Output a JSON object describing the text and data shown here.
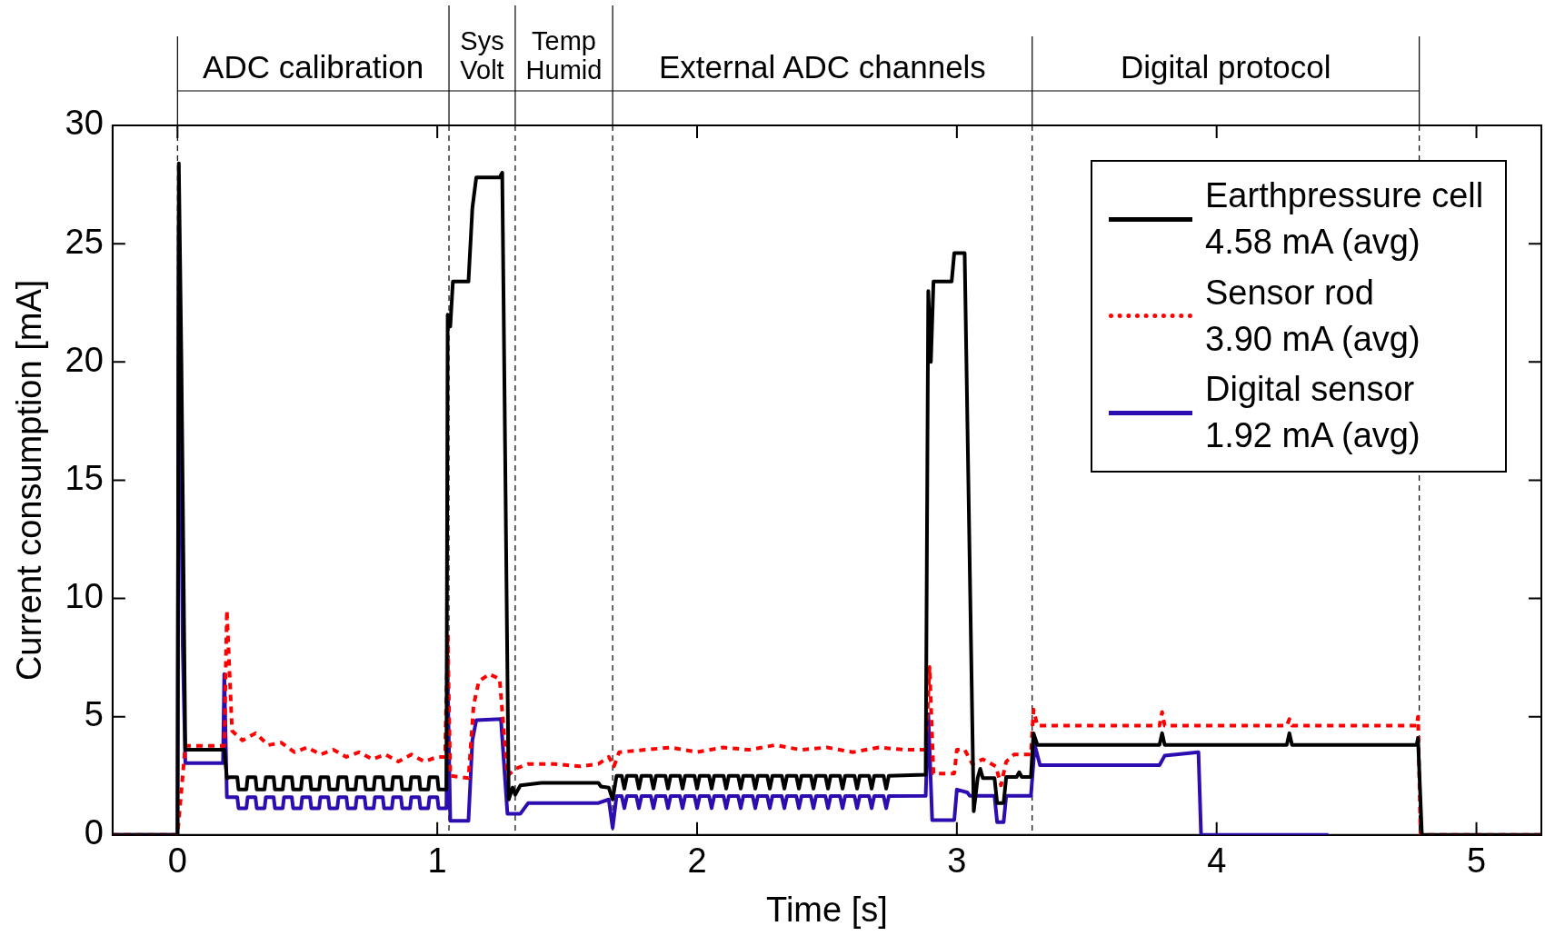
{
  "chart_data": {
    "type": "line",
    "xlabel": "Time [s]",
    "ylabel": "Current consumption [mA]",
    "xlim": [
      -0.25,
      5.25
    ],
    "xticks": [
      0,
      1,
      2,
      3,
      4,
      5
    ],
    "ylim": [
      0,
      30
    ],
    "yticks": [
      0,
      5,
      10,
      15,
      20,
      25,
      30
    ],
    "grid": false,
    "legend": "top right",
    "marker": "none",
    "ref_lines": [
      {
        "axis": "x",
        "value": 0,
        "line_style": "dashed",
        "color": "#000000"
      },
      {
        "axis": "x",
        "value": 1.045,
        "line_style": "dashed",
        "color": "#000000"
      },
      {
        "axis": "x",
        "value": 1.3,
        "line_style": "dashed",
        "color": "#000000"
      },
      {
        "axis": "x",
        "value": 1.675,
        "line_style": "dashed",
        "color": "#000000"
      },
      {
        "axis": "x",
        "value": 3.29,
        "line_style": "dashed",
        "color": "#000000"
      },
      {
        "axis": "x",
        "value": 4.78,
        "line_style": "dashed",
        "color": "#000000"
      }
    ],
    "annotations": [
      "ADC calibration",
      "Sys\nVolt",
      "Temp\nHumid",
      "External ADC channels",
      "Digital protocol"
    ],
    "series": [
      {
        "name": "Earthpressure cell\n4.58 mA (avg)",
        "color": "#000000",
        "line_style": "solid",
        "x": [
          -0.25,
          0,
          0.005,
          0.015,
          0.03,
          0.18,
          0.19,
          0.2,
          0.23,
          0.235,
          0.265,
          0.27,
          0.3,
          0.305,
          0.335,
          0.34,
          0.37,
          0.375,
          0.405,
          0.41,
          0.44,
          0.445,
          0.475,
          0.48,
          0.51,
          0.515,
          0.545,
          0.55,
          0.58,
          0.585,
          0.615,
          0.62,
          0.65,
          0.655,
          0.685,
          0.69,
          0.72,
          0.725,
          0.755,
          0.76,
          0.79,
          0.795,
          0.825,
          0.83,
          0.86,
          0.865,
          0.895,
          0.9,
          0.93,
          0.935,
          0.965,
          0.97,
          1.0,
          1.005,
          1.035,
          1.04,
          1.05,
          1.06,
          1.12,
          1.135,
          1.15,
          1.24,
          1.25,
          1.275,
          1.29,
          1.3,
          1.32,
          1.4,
          1.62,
          1.63,
          1.66,
          1.675,
          1.69,
          1.71,
          1.72,
          1.73,
          1.766,
          1.776,
          1.786,
          1.822,
          1.832,
          1.842,
          1.878,
          1.888,
          1.898,
          1.934,
          1.944,
          1.954,
          1.99,
          2.0,
          2.01,
          2.046,
          2.056,
          2.066,
          2.102,
          2.112,
          2.122,
          2.158,
          2.168,
          2.178,
          2.214,
          2.224,
          2.234,
          2.27,
          2.28,
          2.29,
          2.326,
          2.336,
          2.346,
          2.382,
          2.392,
          2.402,
          2.438,
          2.448,
          2.458,
          2.494,
          2.504,
          2.514,
          2.55,
          2.56,
          2.57,
          2.606,
          2.616,
          2.626,
          2.662,
          2.672,
          2.682,
          2.718,
          2.728,
          2.738,
          2.88,
          2.89,
          2.9,
          2.91,
          2.98,
          2.99,
          3.03,
          3.065,
          3.08,
          3.09,
          3.1,
          3.145,
          3.155,
          3.18,
          3.19,
          3.23,
          3.24,
          3.25,
          3.285,
          3.295,
          3.31,
          3.78,
          3.79,
          3.8,
          4.27,
          4.28,
          4.29,
          4.77,
          4.775,
          4.79,
          5.25
        ],
        "values": [
          0,
          0,
          28.4,
          20,
          3.6,
          3.6,
          2.4,
          2.44,
          2.44,
          1.92,
          1.92,
          2.44,
          2.44,
          1.92,
          1.92,
          2.44,
          2.44,
          1.92,
          1.92,
          2.44,
          2.44,
          1.92,
          1.92,
          2.44,
          2.44,
          1.92,
          1.92,
          2.44,
          2.44,
          1.92,
          1.92,
          2.44,
          2.44,
          1.92,
          1.92,
          2.44,
          2.44,
          1.92,
          1.92,
          2.44,
          2.44,
          1.92,
          1.92,
          2.44,
          2.44,
          1.92,
          1.92,
          2.44,
          2.44,
          1.92,
          1.92,
          2.44,
          2.44,
          1.92,
          1.92,
          22,
          21.5,
          23.4,
          23.4,
          26.5,
          27.8,
          27.8,
          28,
          1.5,
          2,
          1.7,
          2.1,
          2.2,
          2.2,
          2.05,
          2,
          1.5,
          2.5,
          2.5,
          1.96,
          2.5,
          2.5,
          1.96,
          2.5,
          2.5,
          1.96,
          2.5,
          2.5,
          1.96,
          2.5,
          2.5,
          1.96,
          2.5,
          2.5,
          1.96,
          2.5,
          2.5,
          1.96,
          2.5,
          2.5,
          1.96,
          2.5,
          2.5,
          1.96,
          2.5,
          2.5,
          1.96,
          2.5,
          2.5,
          1.96,
          2.5,
          2.5,
          1.96,
          2.5,
          2.5,
          1.96,
          2.5,
          2.5,
          1.96,
          2.5,
          2.5,
          1.96,
          2.5,
          2.5,
          1.96,
          2.5,
          2.5,
          1.96,
          2.5,
          2.5,
          1.96,
          2.5,
          2.5,
          1.96,
          2.5,
          2.55,
          23,
          20,
          23.4,
          23.4,
          24.6,
          24.6,
          1,
          2.4,
          2.8,
          2.4,
          2.4,
          1.35,
          1.35,
          2.45,
          2.45,
          2.65,
          2.45,
          2.45,
          4.3,
          3.81,
          3.81,
          4.3,
          3.81,
          3.81,
          4.3,
          3.81,
          3.81,
          4.1,
          0,
          0
        ]
      },
      {
        "name": "Sensor rod\n3.90 mA (avg)",
        "color": "#ff0000",
        "line_style": "dotted",
        "x": [
          -0.25,
          0,
          0.03,
          0.18,
          0.19,
          0.21,
          0.25,
          0.3,
          0.35,
          0.4,
          0.45,
          0.5,
          0.55,
          0.6,
          0.65,
          0.7,
          0.75,
          0.8,
          0.85,
          0.9,
          0.95,
          1.0,
          1.03,
          1.04,
          1.05,
          1.12,
          1.14,
          1.16,
          1.2,
          1.24,
          1.27,
          1.3,
          1.35,
          1.45,
          1.55,
          1.62,
          1.66,
          1.68,
          1.7,
          1.8,
          1.9,
          2.0,
          2.1,
          2.2,
          2.3,
          2.4,
          2.5,
          2.6,
          2.7,
          2.8,
          2.88,
          2.895,
          2.91,
          2.99,
          3.0,
          3.03,
          3.06,
          3.1,
          3.15,
          3.17,
          3.19,
          3.22,
          3.285,
          3.295,
          3.31,
          3.78,
          3.79,
          3.8,
          4.27,
          4.28,
          4.29,
          4.77,
          4.775,
          4.785,
          5.25
        ],
        "values": [
          0,
          0,
          3.77,
          3.77,
          9.5,
          4.4,
          4,
          4.3,
          3.8,
          3.9,
          3.5,
          3.7,
          3.4,
          3.6,
          3.3,
          3.5,
          3.2,
          3.4,
          3.1,
          3.4,
          3.1,
          3.3,
          3.3,
          8.5,
          2.5,
          2.4,
          5.5,
          6.5,
          6.8,
          6.6,
          2.5,
          2.8,
          3,
          3,
          2.9,
          3,
          3.3,
          2.9,
          3.5,
          3.6,
          3.7,
          3.5,
          3.7,
          3.6,
          3.8,
          3.6,
          3.7,
          3.5,
          3.7,
          3.6,
          3.6,
          7.1,
          2.6,
          2.6,
          3.6,
          3.6,
          3,
          3.2,
          2.9,
          2.1,
          3.1,
          3.4,
          3.4,
          5.3,
          4.62,
          4.62,
          5.2,
          4.62,
          4.62,
          4.9,
          4.62,
          4.62,
          5,
          0,
          0
        ]
      },
      {
        "name": "Digital sensor\n1.92 mA (avg)",
        "color": "#2d0db0",
        "line_style": "solid",
        "x": [
          -0.25,
          0,
          0.005,
          0.02,
          0.03,
          0.175,
          0.18,
          0.19,
          0.2,
          0.23,
          0.235,
          0.265,
          0.27,
          0.3,
          0.305,
          0.335,
          0.34,
          0.37,
          0.375,
          0.405,
          0.41,
          0.44,
          0.445,
          0.475,
          0.48,
          0.51,
          0.515,
          0.545,
          0.55,
          0.58,
          0.585,
          0.615,
          0.62,
          0.65,
          0.655,
          0.685,
          0.69,
          0.72,
          0.725,
          0.755,
          0.76,
          0.79,
          0.795,
          0.825,
          0.83,
          0.86,
          0.865,
          0.895,
          0.9,
          0.93,
          0.935,
          0.965,
          0.97,
          1.0,
          1.005,
          1.035,
          1.04,
          1.05,
          1.12,
          1.135,
          1.15,
          1.245,
          1.27,
          1.32,
          1.35,
          1.62,
          1.66,
          1.675,
          1.69,
          1.71,
          1.72,
          1.73,
          1.766,
          1.776,
          1.786,
          1.822,
          1.832,
          1.842,
          1.878,
          1.888,
          1.898,
          1.934,
          1.944,
          1.954,
          1.99,
          2.0,
          2.01,
          2.046,
          2.056,
          2.066,
          2.102,
          2.112,
          2.122,
          2.158,
          2.168,
          2.178,
          2.214,
          2.224,
          2.234,
          2.27,
          2.28,
          2.29,
          2.326,
          2.336,
          2.346,
          2.382,
          2.392,
          2.402,
          2.438,
          2.448,
          2.458,
          2.494,
          2.504,
          2.514,
          2.55,
          2.56,
          2.57,
          2.606,
          2.616,
          2.626,
          2.662,
          2.672,
          2.682,
          2.718,
          2.728,
          2.738,
          2.88,
          2.89,
          2.905,
          2.99,
          3.0,
          3.04,
          3.05,
          3.145,
          3.155,
          3.18,
          3.19,
          3.285,
          3.3,
          3.32,
          3.78,
          3.8,
          3.93,
          3.94,
          4.43
        ],
        "values": [
          0,
          0,
          25.8,
          8,
          3.04,
          3.04,
          6.8,
          1.6,
          1.6,
          1.6,
          1.13,
          1.13,
          1.6,
          1.6,
          1.13,
          1.13,
          1.6,
          1.6,
          1.13,
          1.13,
          1.6,
          1.6,
          1.13,
          1.13,
          1.6,
          1.6,
          1.13,
          1.13,
          1.6,
          1.6,
          1.13,
          1.13,
          1.6,
          1.6,
          1.13,
          1.13,
          1.6,
          1.6,
          1.13,
          1.13,
          1.6,
          1.6,
          1.13,
          1.13,
          1.6,
          1.6,
          1.13,
          1.13,
          1.6,
          1.6,
          1.13,
          1.13,
          1.6,
          1.6,
          1.13,
          1.13,
          6.5,
          0.6,
          0.6,
          4,
          4.85,
          4.9,
          0.9,
          0.9,
          1.35,
          1.35,
          1.5,
          0.3,
          1.64,
          1.64,
          1.13,
          1.64,
          1.64,
          1.13,
          1.64,
          1.64,
          1.13,
          1.64,
          1.64,
          1.13,
          1.64,
          1.64,
          1.13,
          1.64,
          1.64,
          1.13,
          1.64,
          1.64,
          1.13,
          1.64,
          1.64,
          1.13,
          1.64,
          1.64,
          1.13,
          1.64,
          1.64,
          1.13,
          1.64,
          1.64,
          1.13,
          1.64,
          1.64,
          1.13,
          1.64,
          1.64,
          1.13,
          1.64,
          1.64,
          1.13,
          1.64,
          1.64,
          1.13,
          1.64,
          1.64,
          1.13,
          1.64,
          1.64,
          1.13,
          1.64,
          1.64,
          1.13,
          1.64,
          1.64,
          1.13,
          1.64,
          1.65,
          5.1,
          0.63,
          0.63,
          1.92,
          1.8,
          1.65,
          1.65,
          0.54,
          0.54,
          1.65,
          1.65,
          3.8,
          2.95,
          2.95,
          3.35,
          3.5,
          0,
          0
        ]
      }
    ]
  }
}
